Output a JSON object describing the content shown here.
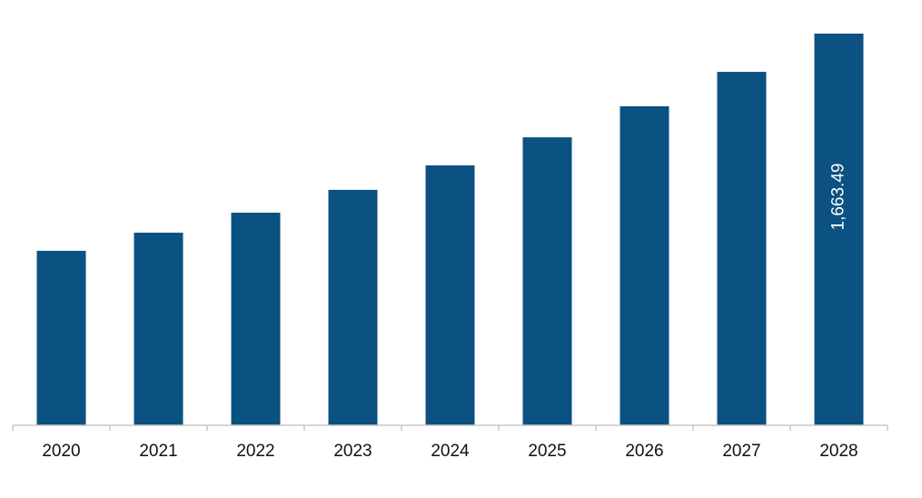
{
  "chart_data": {
    "type": "bar",
    "categories": [
      "2020",
      "2021",
      "2022",
      "2023",
      "2024",
      "2025",
      "2026",
      "2027",
      "2028"
    ],
    "values": [
      741,
      818,
      903,
      1000,
      1104,
      1223,
      1355,
      1501,
      1663.49
    ],
    "value_labels": [
      null,
      null,
      null,
      null,
      null,
      null,
      null,
      null,
      "1,663.49"
    ],
    "color": "#0b5181"
  }
}
